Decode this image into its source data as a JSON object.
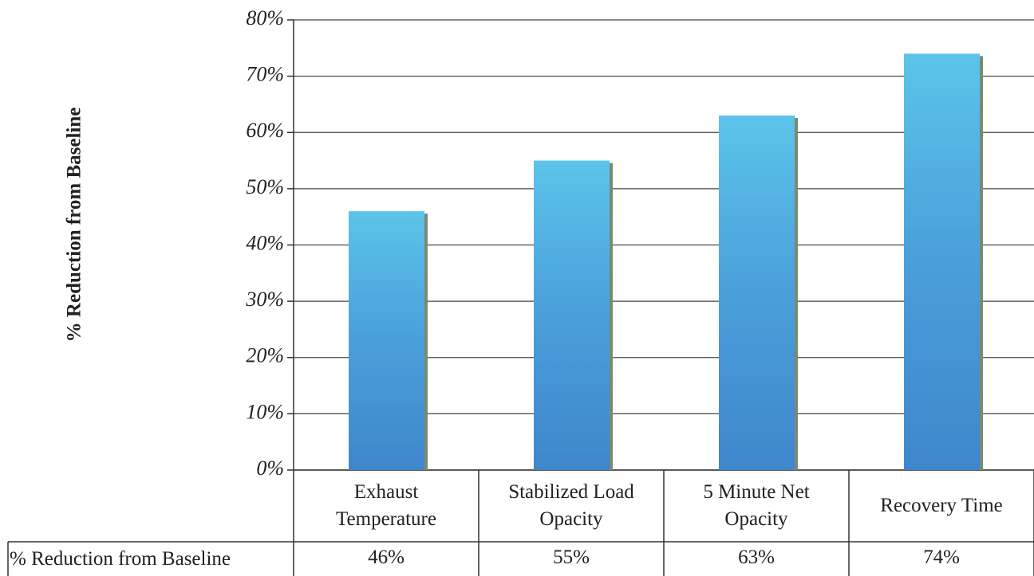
{
  "chart_data": {
    "type": "bar",
    "y_label": "% Reduction from Baseline",
    "categories": [
      "Exhaust Temperature",
      "Stabilized Load Opacity",
      "5 Minute Net Opacity",
      "Recovery Time"
    ],
    "series": [
      {
        "name": "% Reduction from Baseline",
        "color": "#3f86cc",
        "values": [
          46,
          55,
          63,
          74
        ],
        "value_labels": [
          "46%",
          "55%",
          "63%",
          "74%"
        ]
      }
    ],
    "ylim": [
      0,
      80
    ],
    "yticks": [
      {
        "value": 0,
        "label": "0%"
      },
      {
        "value": 10,
        "label": "10%"
      },
      {
        "value": 20,
        "label": "20%"
      },
      {
        "value": 30,
        "label": "30%"
      },
      {
        "value": 40,
        "label": "40%"
      },
      {
        "value": 50,
        "label": "50%"
      },
      {
        "value": 60,
        "label": "60%"
      },
      {
        "value": 70,
        "label": "70%"
      },
      {
        "value": 80,
        "label": "80%"
      }
    ],
    "grid": true
  }
}
